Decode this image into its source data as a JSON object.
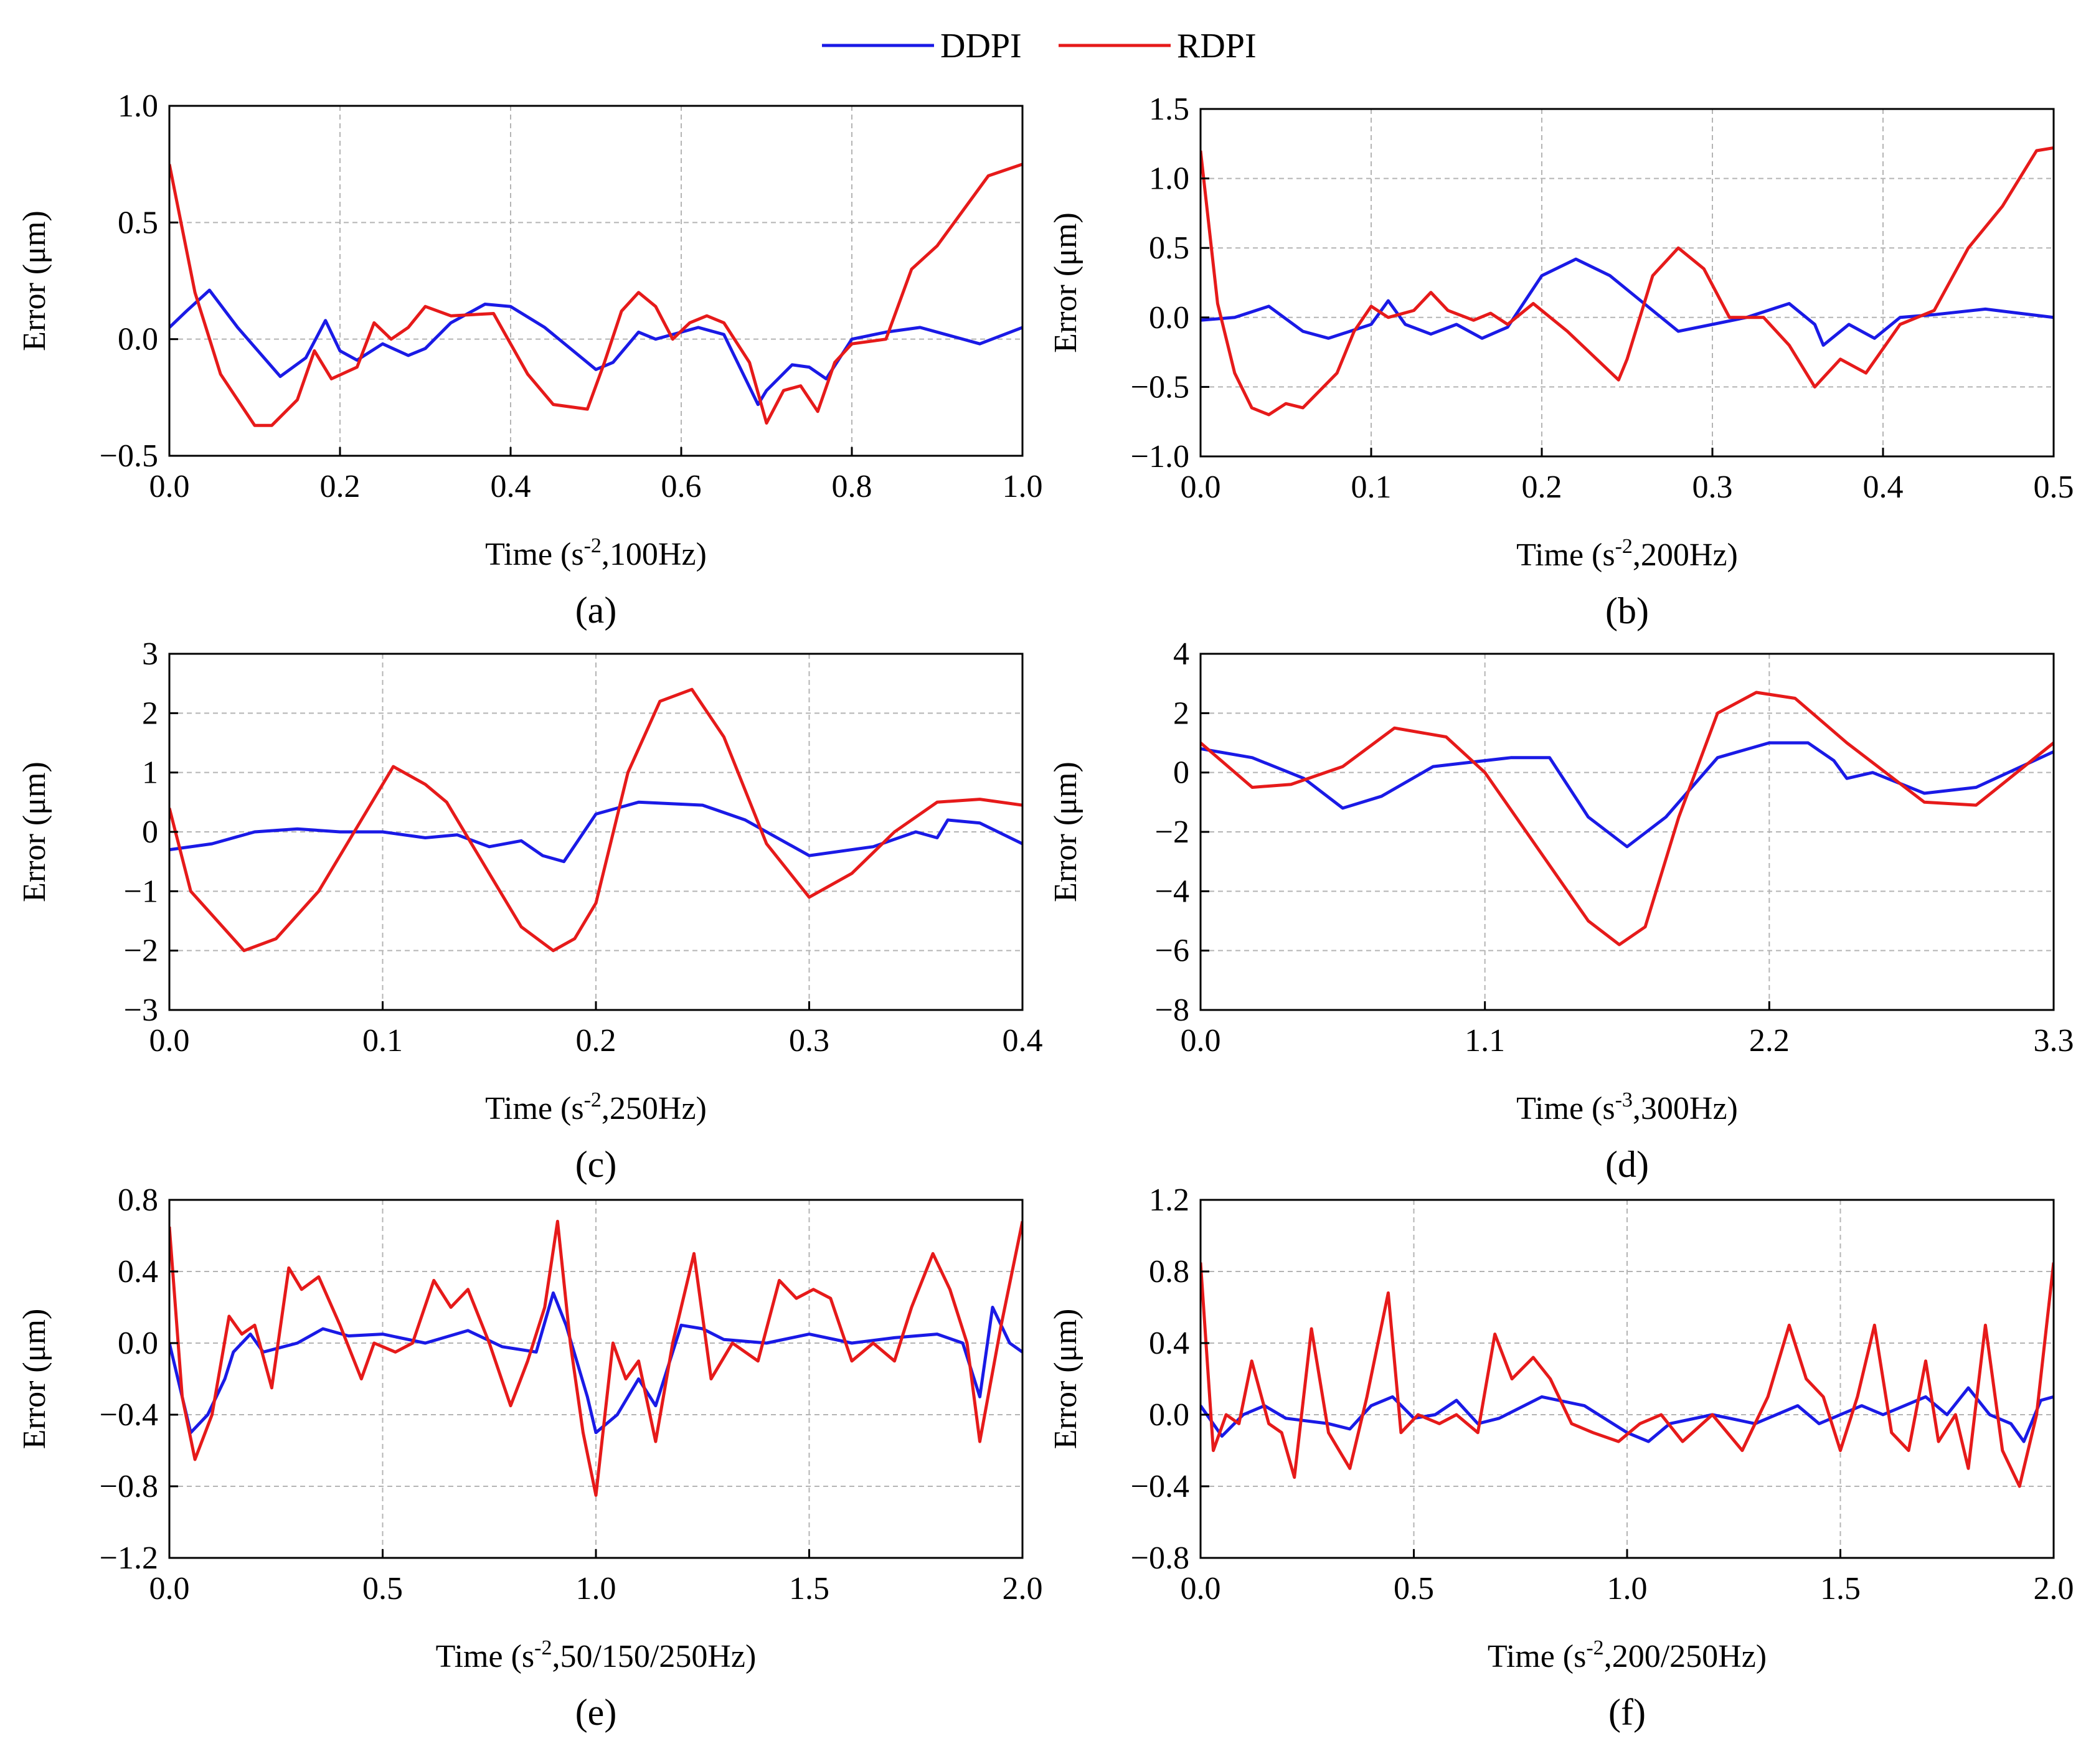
{
  "legend": [
    {
      "name": "DDPI",
      "color": "#1a1ae6"
    },
    {
      "name": "RDPI",
      "color": "#e61a1a"
    }
  ],
  "chart_data": [
    {
      "type": "line",
      "panel_label": "(a)",
      "ylabel": "Error (μm)",
      "xlabel_parts": [
        "Time (s",
        "-2",
        ",100Hz)"
      ],
      "xlim": [
        0,
        1.0
      ],
      "ylim": [
        -0.5,
        1.0
      ],
      "xticks": [
        "0.0",
        "0.2",
        "0.4",
        "0.6",
        "0.8",
        "1.0"
      ],
      "yticks": [
        "−0.5",
        "0.0",
        "0.5",
        "1.0"
      ],
      "xtick_values": [
        0,
        0.2,
        0.4,
        0.6,
        0.8,
        1.0
      ],
      "ytick_values": [
        -0.5,
        0,
        0.5,
        1.0
      ],
      "grid": true,
      "series": [
        {
          "name": "DDPI",
          "x": [
            0,
            0.02,
            0.047,
            0.08,
            0.13,
            0.16,
            0.183,
            0.2,
            0.22,
            0.25,
            0.28,
            0.3,
            0.33,
            0.37,
            0.4,
            0.44,
            0.5,
            0.52,
            0.55,
            0.57,
            0.62,
            0.65,
            0.69,
            0.7,
            0.73,
            0.75,
            0.77,
            0.8,
            0.84,
            0.88,
            0.92,
            0.95,
            1.0
          ],
          "y": [
            0.05,
            0.12,
            0.21,
            0.05,
            -0.16,
            -0.08,
            0.08,
            -0.05,
            -0.09,
            -0.02,
            -0.07,
            -0.04,
            0.07,
            0.15,
            0.14,
            0.05,
            -0.13,
            -0.1,
            0.03,
            0.0,
            0.05,
            0.02,
            -0.28,
            -0.22,
            -0.11,
            -0.12,
            -0.17,
            0.0,
            0.03,
            0.05,
            0.01,
            -0.02,
            0.05
          ]
        },
        {
          "name": "RDPI",
          "x": [
            0,
            0.03,
            0.06,
            0.1,
            0.12,
            0.15,
            0.17,
            0.19,
            0.22,
            0.24,
            0.26,
            0.28,
            0.3,
            0.33,
            0.38,
            0.42,
            0.45,
            0.49,
            0.51,
            0.53,
            0.55,
            0.57,
            0.59,
            0.61,
            0.63,
            0.65,
            0.68,
            0.7,
            0.72,
            0.74,
            0.76,
            0.78,
            0.8,
            0.84,
            0.87,
            0.9,
            0.93,
            0.96,
            1.0
          ],
          "y": [
            0.75,
            0.2,
            -0.15,
            -0.37,
            -0.37,
            -0.26,
            -0.05,
            -0.17,
            -0.12,
            0.07,
            0.0,
            0.05,
            0.14,
            0.1,
            0.11,
            -0.15,
            -0.28,
            -0.3,
            -0.1,
            0.12,
            0.2,
            0.14,
            0.0,
            0.07,
            0.1,
            0.07,
            -0.1,
            -0.36,
            -0.22,
            -0.2,
            -0.31,
            -0.1,
            -0.02,
            0.0,
            0.3,
            0.4,
            0.55,
            0.7,
            0.75
          ]
        }
      ]
    },
    {
      "type": "line",
      "panel_label": "(b)",
      "ylabel": "Error (μm)",
      "xlabel_parts": [
        "Time (s",
        "-2",
        ",200Hz)"
      ],
      "xlim": [
        0,
        0.5
      ],
      "ylim": [
        -1.0,
        1.5
      ],
      "xticks": [
        "0.0",
        "0.1",
        "0.2",
        "0.3",
        "0.4",
        "0.5"
      ],
      "yticks": [
        "−1.0",
        "−0.5",
        "0.0",
        "0.5",
        "1.0",
        "1.5"
      ],
      "xtick_values": [
        0,
        0.1,
        0.2,
        0.3,
        0.4,
        0.5
      ],
      "ytick_values": [
        -1.0,
        -0.5,
        0,
        0.5,
        1.0,
        1.5
      ],
      "grid": true,
      "series": [
        {
          "name": "DDPI",
          "x": [
            0,
            0.02,
            0.04,
            0.06,
            0.075,
            0.1,
            0.11,
            0.12,
            0.135,
            0.15,
            0.165,
            0.18,
            0.2,
            0.22,
            0.24,
            0.26,
            0.28,
            0.3,
            0.32,
            0.345,
            0.36,
            0.365,
            0.38,
            0.395,
            0.41,
            0.43,
            0.46,
            0.48,
            0.5
          ],
          "y": [
            -0.02,
            0.0,
            0.08,
            -0.1,
            -0.15,
            -0.05,
            0.12,
            -0.05,
            -0.12,
            -0.05,
            -0.15,
            -0.07,
            0.3,
            0.42,
            0.3,
            0.1,
            -0.1,
            -0.05,
            0.0,
            0.1,
            -0.05,
            -0.2,
            -0.05,
            -0.15,
            0.0,
            0.02,
            0.06,
            0.03,
            0.0
          ]
        },
        {
          "name": "RDPI",
          "x": [
            0,
            0.01,
            0.02,
            0.03,
            0.04,
            0.05,
            0.06,
            0.08,
            0.09,
            0.1,
            0.11,
            0.125,
            0.135,
            0.145,
            0.16,
            0.17,
            0.18,
            0.195,
            0.215,
            0.245,
            0.25,
            0.265,
            0.28,
            0.295,
            0.31,
            0.33,
            0.345,
            0.36,
            0.375,
            0.39,
            0.41,
            0.43,
            0.45,
            0.47,
            0.49,
            0.5
          ],
          "y": [
            1.2,
            0.1,
            -0.4,
            -0.65,
            -0.7,
            -0.62,
            -0.65,
            -0.4,
            -0.1,
            0.08,
            0.0,
            0.05,
            0.18,
            0.05,
            -0.02,
            0.03,
            -0.05,
            0.1,
            -0.1,
            -0.45,
            -0.3,
            0.3,
            0.5,
            0.35,
            0.0,
            0.0,
            -0.2,
            -0.5,
            -0.3,
            -0.4,
            -0.05,
            0.05,
            0.5,
            0.8,
            1.2,
            1.22
          ]
        }
      ]
    },
    {
      "type": "line",
      "panel_label": "(c)",
      "ylabel": "Error (μm)",
      "xlabel_parts": [
        "Time (s",
        "-2",
        ",250Hz)"
      ],
      "xlim": [
        0,
        0.4
      ],
      "ylim": [
        -3,
        3
      ],
      "xticks": [
        "0.0",
        "0.1",
        "0.2",
        "0.3",
        "0.4"
      ],
      "yticks": [
        "−3",
        "−2",
        "−1",
        "0",
        "1",
        "2",
        "3"
      ],
      "xtick_values": [
        0,
        0.1,
        0.2,
        0.3,
        0.4
      ],
      "ytick_values": [
        -3,
        -2,
        -1,
        0,
        1,
        2,
        3
      ],
      "grid": true,
      "series": [
        {
          "name": "DDPI",
          "x": [
            0,
            0.02,
            0.04,
            0.06,
            0.08,
            0.1,
            0.12,
            0.135,
            0.15,
            0.165,
            0.175,
            0.185,
            0.2,
            0.22,
            0.25,
            0.27,
            0.3,
            0.33,
            0.35,
            0.36,
            0.365,
            0.38,
            0.4
          ],
          "y": [
            -0.3,
            -0.2,
            0.0,
            0.05,
            0.0,
            0.0,
            -0.1,
            -0.05,
            -0.25,
            -0.15,
            -0.4,
            -0.5,
            0.3,
            0.5,
            0.45,
            0.2,
            -0.4,
            -0.25,
            0.0,
            -0.1,
            0.2,
            0.15,
            -0.2
          ]
        },
        {
          "name": "RDPI",
          "x": [
            0,
            0.01,
            0.035,
            0.05,
            0.07,
            0.09,
            0.105,
            0.12,
            0.13,
            0.15,
            0.165,
            0.18,
            0.19,
            0.2,
            0.215,
            0.23,
            0.245,
            0.26,
            0.28,
            0.3,
            0.32,
            0.34,
            0.36,
            0.38,
            0.4
          ],
          "y": [
            0.4,
            -1.0,
            -2.0,
            -1.8,
            -1.0,
            0.2,
            1.1,
            0.8,
            0.5,
            -0.7,
            -1.6,
            -2.0,
            -1.8,
            -1.2,
            1.0,
            2.2,
            2.4,
            1.6,
            -0.2,
            -1.1,
            -0.7,
            0.0,
            0.5,
            0.55,
            0.45
          ]
        }
      ]
    },
    {
      "type": "line",
      "panel_label": "(d)",
      "ylabel": "Error (μm)",
      "xlabel_parts": [
        "Time (s",
        "-3",
        ",300Hz)"
      ],
      "xlim": [
        0,
        3.3
      ],
      "ylim": [
        -8,
        4
      ],
      "xticks": [
        "0.0",
        "1.1",
        "2.2",
        "3.3"
      ],
      "yticks": [
        "−8",
        "−6",
        "−4",
        "−2",
        "0",
        "2",
        "4"
      ],
      "xtick_values": [
        0,
        1.1,
        2.2,
        3.3
      ],
      "ytick_values": [
        -8,
        -6,
        -4,
        -2,
        0,
        2,
        4
      ],
      "grid": true,
      "series": [
        {
          "name": "DDPI",
          "x": [
            0,
            0.2,
            0.4,
            0.55,
            0.7,
            0.9,
            1.2,
            1.35,
            1.5,
            1.65,
            1.8,
            2.0,
            2.2,
            2.35,
            2.45,
            2.5,
            2.6,
            2.8,
            3.0,
            3.3
          ],
          "y": [
            0.8,
            0.5,
            -0.2,
            -1.2,
            -0.8,
            0.2,
            0.5,
            0.5,
            -1.5,
            -2.5,
            -1.5,
            0.5,
            1.0,
            1.0,
            0.4,
            -0.2,
            0.0,
            -0.7,
            -0.5,
            0.7
          ]
        },
        {
          "name": "RDPI",
          "x": [
            0,
            0.2,
            0.35,
            0.55,
            0.75,
            0.95,
            1.1,
            1.3,
            1.5,
            1.62,
            1.72,
            1.85,
            2.0,
            2.15,
            2.3,
            2.5,
            2.8,
            3.0,
            3.3
          ],
          "y": [
            1.0,
            -0.5,
            -0.4,
            0.2,
            1.5,
            1.2,
            0.0,
            -2.5,
            -5.0,
            -5.8,
            -5.2,
            -1.5,
            2.0,
            2.7,
            2.5,
            1.0,
            -1.0,
            -1.1,
            1.0
          ]
        }
      ]
    },
    {
      "type": "line",
      "panel_label": "(e)",
      "ylabel": "Error (μm)",
      "xlabel_parts": [
        "Time (s",
        "-2",
        ",50/150/250Hz)"
      ],
      "xlim": [
        0,
        2.0
      ],
      "ylim": [
        -1.2,
        0.8
      ],
      "xticks": [
        "0.0",
        "0.5",
        "1.0",
        "1.5",
        "2.0"
      ],
      "yticks": [
        "−1.2",
        "−0.8",
        "−0.4",
        "0.0",
        "0.4",
        "0.8"
      ],
      "xtick_values": [
        0,
        0.5,
        1.0,
        1.5,
        2.0
      ],
      "ytick_values": [
        -1.2,
        -0.8,
        -0.4,
        0,
        0.4,
        0.8
      ],
      "grid": true,
      "series": [
        {
          "name": "DDPI",
          "x": [
            0,
            0.05,
            0.09,
            0.13,
            0.15,
            0.19,
            0.22,
            0.3,
            0.36,
            0.42,
            0.5,
            0.6,
            0.7,
            0.78,
            0.86,
            0.9,
            0.93,
            0.98,
            1.0,
            1.05,
            1.1,
            1.14,
            1.2,
            1.25,
            1.3,
            1.4,
            1.5,
            1.6,
            1.7,
            1.8,
            1.86,
            1.9,
            1.93,
            1.97,
            2.0
          ],
          "y": [
            0.0,
            -0.5,
            -0.4,
            -0.2,
            -0.05,
            0.05,
            -0.05,
            0.0,
            0.08,
            0.04,
            0.05,
            0.0,
            0.07,
            -0.02,
            -0.05,
            0.28,
            0.1,
            -0.3,
            -0.5,
            -0.4,
            -0.2,
            -0.35,
            0.1,
            0.08,
            0.02,
            0.0,
            0.05,
            0.0,
            0.03,
            0.05,
            0.0,
            -0.3,
            0.2,
            0.0,
            -0.05
          ]
        },
        {
          "name": "RDPI",
          "x": [
            0,
            0.03,
            0.06,
            0.1,
            0.14,
            0.17,
            0.2,
            0.24,
            0.28,
            0.31,
            0.35,
            0.4,
            0.45,
            0.48,
            0.53,
            0.57,
            0.62,
            0.66,
            0.7,
            0.75,
            0.8,
            0.84,
            0.88,
            0.91,
            0.94,
            0.97,
            1.0,
            1.04,
            1.07,
            1.1,
            1.14,
            1.18,
            1.23,
            1.27,
            1.32,
            1.38,
            1.43,
            1.47,
            1.51,
            1.55,
            1.6,
            1.65,
            1.7,
            1.74,
            1.79,
            1.83,
            1.87,
            1.9,
            1.95,
            2.0
          ],
          "y": [
            0.65,
            -0.3,
            -0.65,
            -0.4,
            0.15,
            0.05,
            0.1,
            -0.25,
            0.42,
            0.3,
            0.37,
            0.1,
            -0.2,
            0.0,
            -0.05,
            0.0,
            0.35,
            0.2,
            0.3,
            0.0,
            -0.35,
            -0.1,
            0.2,
            0.68,
            0.0,
            -0.5,
            -0.85,
            0.0,
            -0.2,
            -0.1,
            -0.55,
            0.0,
            0.5,
            -0.2,
            0.0,
            -0.1,
            0.35,
            0.25,
            0.3,
            0.25,
            -0.1,
            0.0,
            -0.1,
            0.2,
            0.5,
            0.3,
            0.0,
            -0.55,
            0.1,
            0.68
          ]
        }
      ]
    },
    {
      "type": "line",
      "panel_label": "(f)",
      "ylabel": "Error (μm)",
      "xlabel_parts": [
        "Time (s",
        "-2",
        ",200/250Hz)"
      ],
      "xlim": [
        0,
        2.0
      ],
      "ylim": [
        -0.8,
        1.2
      ],
      "xticks": [
        "0.0",
        "0.5",
        "1.0",
        "1.5",
        "2.0"
      ],
      "yticks": [
        "−0.8",
        "−0.4",
        "0.0",
        "0.4",
        "0.8",
        "1.2"
      ],
      "xtick_values": [
        0,
        0.5,
        1.0,
        1.5,
        2.0
      ],
      "ytick_values": [
        -0.8,
        -0.4,
        0,
        0.4,
        0.8,
        1.2
      ],
      "grid": true,
      "series": [
        {
          "name": "DDPI",
          "x": [
            0,
            0.05,
            0.1,
            0.15,
            0.2,
            0.3,
            0.35,
            0.4,
            0.45,
            0.5,
            0.55,
            0.6,
            0.65,
            0.7,
            0.8,
            0.9,
            1.0,
            1.05,
            1.1,
            1.2,
            1.3,
            1.4,
            1.45,
            1.5,
            1.55,
            1.6,
            1.7,
            1.75,
            1.8,
            1.85,
            1.9,
            1.93,
            1.97,
            2.0
          ],
          "y": [
            0.05,
            -0.12,
            0.0,
            0.05,
            -0.02,
            -0.05,
            -0.08,
            0.05,
            0.1,
            -0.02,
            0.0,
            0.08,
            -0.05,
            -0.02,
            0.1,
            0.05,
            -0.1,
            -0.15,
            -0.05,
            0.0,
            -0.05,
            0.05,
            -0.05,
            0.0,
            0.05,
            0.0,
            0.1,
            0.0,
            0.15,
            0.0,
            -0.05,
            -0.15,
            0.08,
            0.1
          ]
        },
        {
          "name": "RDPI",
          "x": [
            0,
            0.03,
            0.06,
            0.09,
            0.12,
            0.16,
            0.19,
            0.22,
            0.26,
            0.3,
            0.35,
            0.39,
            0.44,
            0.47,
            0.51,
            0.56,
            0.6,
            0.65,
            0.69,
            0.73,
            0.78,
            0.82,
            0.87,
            0.92,
            0.98,
            1.03,
            1.08,
            1.13,
            1.2,
            1.27,
            1.33,
            1.38,
            1.42,
            1.46,
            1.5,
            1.54,
            1.58,
            1.62,
            1.66,
            1.7,
            1.73,
            1.77,
            1.8,
            1.84,
            1.88,
            1.92,
            1.96,
            2.0
          ],
          "y": [
            0.85,
            -0.2,
            0.0,
            -0.05,
            0.3,
            -0.05,
            -0.1,
            -0.35,
            0.48,
            -0.1,
            -0.3,
            0.1,
            0.68,
            -0.1,
            0.0,
            -0.05,
            0.0,
            -0.1,
            0.45,
            0.2,
            0.32,
            0.2,
            -0.05,
            -0.1,
            -0.15,
            -0.05,
            0.0,
            -0.15,
            0.0,
            -0.2,
            0.1,
            0.5,
            0.2,
            0.1,
            -0.2,
            0.1,
            0.5,
            -0.1,
            -0.2,
            0.3,
            -0.15,
            0.0,
            -0.3,
            0.5,
            -0.2,
            -0.4,
            0.0,
            0.85
          ]
        }
      ]
    }
  ]
}
